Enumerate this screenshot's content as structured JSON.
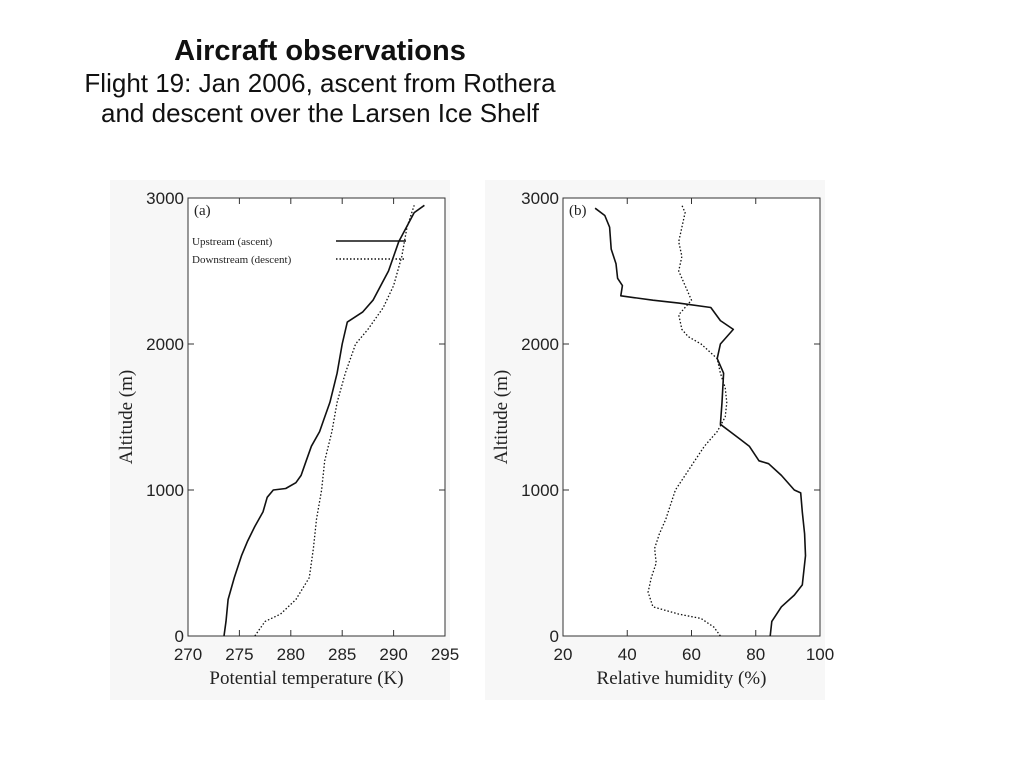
{
  "header": {
    "title": "Aircraft observations",
    "subtitle_line1": "Flight 19: Jan 2006, ascent from Rothera",
    "subtitle_line2": "and descent over the Larsen Ice Shelf"
  },
  "chart_data": [
    {
      "type": "line",
      "panel_label": "(a)",
      "xlabel": "Potential temperature (K)",
      "ylabel": "Altitude (m)",
      "xlim": [
        270,
        295
      ],
      "ylim": [
        0,
        3000
      ],
      "xticks": [
        "270",
        "275",
        "280",
        "285",
        "290",
        "295"
      ],
      "yticks": [
        "0",
        "1000",
        "2000",
        "3000"
      ],
      "legend_position": "top-left",
      "series": [
        {
          "name": "Upstream (ascent)",
          "style": "solid",
          "points": [
            [
              273.5,
              0
            ],
            [
              273.7,
              100
            ],
            [
              273.9,
              250
            ],
            [
              274.5,
              400
            ],
            [
              275.2,
              550
            ],
            [
              275.8,
              650
            ],
            [
              276.5,
              750
            ],
            [
              277.3,
              850
            ],
            [
              277.7,
              950
            ],
            [
              278.3,
              1000
            ],
            [
              279.5,
              1010
            ],
            [
              280.5,
              1050
            ],
            [
              281.0,
              1100
            ],
            [
              281.5,
              1200
            ],
            [
              282.0,
              1300
            ],
            [
              282.8,
              1400
            ],
            [
              283.2,
              1480
            ],
            [
              283.8,
              1600
            ],
            [
              284.5,
              1800
            ],
            [
              285.0,
              2000
            ],
            [
              285.5,
              2150
            ],
            [
              287.0,
              2220
            ],
            [
              288.0,
              2300
            ],
            [
              289.5,
              2500
            ],
            [
              290.5,
              2700
            ],
            [
              292.0,
              2900
            ],
            [
              293.0,
              2950
            ]
          ]
        },
        {
          "name": "Downstream (descent)",
          "style": "dotted",
          "points": [
            [
              276.5,
              0
            ],
            [
              277.5,
              100
            ],
            [
              279.0,
              150
            ],
            [
              280.5,
              250
            ],
            [
              281.8,
              400
            ],
            [
              282.2,
              600
            ],
            [
              282.5,
              800
            ],
            [
              283.0,
              1000
            ],
            [
              283.3,
              1200
            ],
            [
              284.0,
              1400
            ],
            [
              284.5,
              1600
            ],
            [
              285.3,
              1800
            ],
            [
              286.3,
              2000
            ],
            [
              287.5,
              2100
            ],
            [
              289.0,
              2250
            ],
            [
              290.0,
              2400
            ],
            [
              290.8,
              2600
            ],
            [
              291.3,
              2800
            ],
            [
              292.0,
              2950
            ]
          ]
        }
      ]
    },
    {
      "type": "line",
      "panel_label": "(b)",
      "xlabel": "Relative humidity (%)",
      "ylabel": "Altitude (m)",
      "xlim": [
        20,
        100
      ],
      "ylim": [
        0,
        3000
      ],
      "xticks": [
        "20",
        "40",
        "60",
        "80",
        "100"
      ],
      "yticks": [
        "0",
        "1000",
        "2000",
        "3000"
      ],
      "series": [
        {
          "name": "Upstream (ascent)",
          "style": "solid",
          "points": [
            [
              84.5,
              0
            ],
            [
              85.0,
              100
            ],
            [
              88.0,
              200
            ],
            [
              92.0,
              280
            ],
            [
              94.5,
              350
            ],
            [
              95.0,
              450
            ],
            [
              95.5,
              550
            ],
            [
              95.2,
              700
            ],
            [
              94.5,
              850
            ],
            [
              94.0,
              980
            ],
            [
              92.0,
              1000
            ],
            [
              88.0,
              1100
            ],
            [
              84.0,
              1180
            ],
            [
              81.0,
              1200
            ],
            [
              78.0,
              1300
            ],
            [
              75.0,
              1350
            ],
            [
              72.0,
              1400
            ],
            [
              69.0,
              1450
            ],
            [
              69.5,
              1600
            ],
            [
              70.0,
              1800
            ],
            [
              68.0,
              1900
            ],
            [
              69.0,
              2000
            ],
            [
              73.0,
              2100
            ],
            [
              69.0,
              2160
            ],
            [
              66.0,
              2250
            ],
            [
              56.0,
              2280
            ],
            [
              48.0,
              2300
            ],
            [
              38.0,
              2330
            ],
            [
              38.5,
              2400
            ],
            [
              37.0,
              2450
            ],
            [
              36.5,
              2550
            ],
            [
              35.0,
              2650
            ],
            [
              34.5,
              2800
            ],
            [
              33.0,
              2880
            ],
            [
              30.0,
              2930
            ]
          ]
        },
        {
          "name": "Downstream (descent)",
          "style": "dotted",
          "points": [
            [
              69.0,
              0
            ],
            [
              67.0,
              60
            ],
            [
              63.0,
              120
            ],
            [
              56.0,
              150
            ],
            [
              48.0,
              200
            ],
            [
              46.5,
              300
            ],
            [
              47.5,
              400
            ],
            [
              49.0,
              500
            ],
            [
              48.5,
              600
            ],
            [
              50.0,
              700
            ],
            [
              52.0,
              800
            ],
            [
              53.5,
              900
            ],
            [
              55.0,
              1000
            ],
            [
              58.0,
              1100
            ],
            [
              61.0,
              1200
            ],
            [
              64.0,
              1300
            ],
            [
              68.0,
              1400
            ],
            [
              70.5,
              1500
            ],
            [
              71.0,
              1600
            ],
            [
              70.5,
              1700
            ],
            [
              69.0,
              1800
            ],
            [
              68.0,
              1900
            ],
            [
              63.0,
              2000
            ],
            [
              59.0,
              2050
            ],
            [
              57.0,
              2100
            ],
            [
              56.0,
              2200
            ],
            [
              60.0,
              2300
            ],
            [
              58.0,
              2400
            ],
            [
              56.0,
              2500
            ],
            [
              57.0,
              2600
            ],
            [
              56.0,
              2700
            ],
            [
              57.0,
              2800
            ],
            [
              58.0,
              2900
            ],
            [
              57.0,
              2950
            ]
          ]
        }
      ]
    }
  ]
}
